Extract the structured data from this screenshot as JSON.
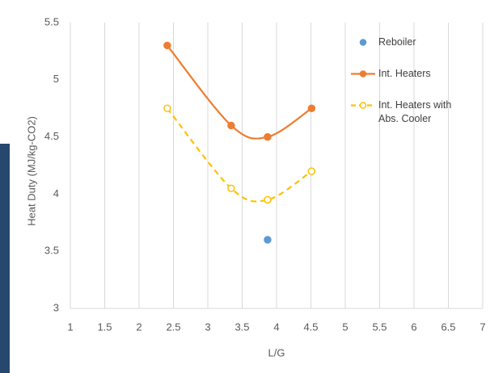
{
  "chart_data": {
    "type": "scatter",
    "ylabel": "Heat Duty (MJ/kg-CO2)",
    "xlabel": "L/G",
    "xlim": [
      1,
      7
    ],
    "xticks": [
      1,
      1.5,
      2,
      2.5,
      3,
      3.5,
      4,
      4.5,
      5,
      5.5,
      6,
      6.5,
      7
    ],
    "ylim": [
      3,
      5.5
    ],
    "yticks": [
      3,
      3.5,
      4,
      4.5,
      5,
      5.5
    ],
    "grid": "x",
    "legend": "top-right",
    "series": [
      {
        "name": "Reboiler",
        "color": "#5b9bd5",
        "marker": "filled",
        "line": "none",
        "x": [
          3.87
        ],
        "values": [
          3.6
        ]
      },
      {
        "name": "Int. Heaters",
        "color": "#ed7d31",
        "marker": "filled",
        "line": "solid",
        "x": [
          2.41,
          3.34,
          3.87,
          4.51
        ],
        "values": [
          5.3,
          4.6,
          4.5,
          4.75
        ]
      },
      {
        "name": "Int. Heaters with Abs. Cooler",
        "color": "#ffc000",
        "marker": "open",
        "line": "dashed",
        "x": [
          2.41,
          3.34,
          3.87,
          4.51
        ],
        "values": [
          4.75,
          4.05,
          3.95,
          4.2
        ]
      }
    ]
  }
}
